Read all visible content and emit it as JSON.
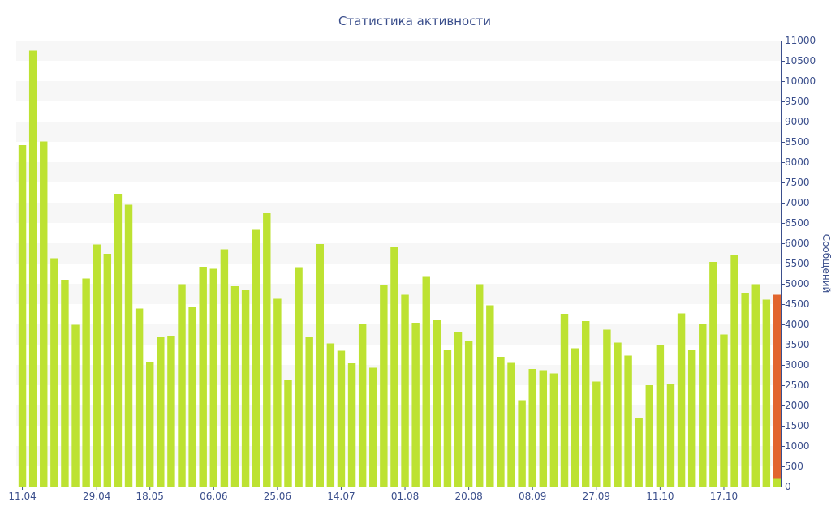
{
  "chart_data": {
    "type": "bar",
    "title": "Статистика активности",
    "xlabel": "",
    "ylabel": "Сообщений",
    "ylim": [
      0,
      11000
    ],
    "y_ticks": [
      0,
      500,
      1000,
      1500,
      2000,
      2500,
      3000,
      3500,
      4000,
      4500,
      5000,
      5500,
      6000,
      6500,
      7000,
      7500,
      8000,
      8500,
      9000,
      9500,
      10000,
      10500,
      11000
    ],
    "x_tick_labels": [
      {
        "index": 0,
        "label": "11.04"
      },
      {
        "index": 7,
        "label": "29.04"
      },
      {
        "index": 12,
        "label": "18.05"
      },
      {
        "index": 18,
        "label": "06.06"
      },
      {
        "index": 24,
        "label": "25.06"
      },
      {
        "index": 30,
        "label": "14.07"
      },
      {
        "index": 36,
        "label": "01.08"
      },
      {
        "index": 42,
        "label": "20.08"
      },
      {
        "index": 48,
        "label": "08.09"
      },
      {
        "index": 54,
        "label": "27.09"
      },
      {
        "index": 60,
        "label": "11.10"
      },
      {
        "index": 66,
        "label": "17.10"
      }
    ],
    "grid": "horizontal alternating bands",
    "colors": {
      "bar": "#bde232",
      "highlight": "#e2652d",
      "band": "#f7f7f7",
      "axis": "#3b4f8c"
    },
    "values": [
      8420,
      10750,
      8510,
      5630,
      5100,
      3990,
      5130,
      5970,
      5740,
      7220,
      6950,
      4390,
      3060,
      3690,
      3720,
      4990,
      4420,
      5420,
      5370,
      5850,
      4940,
      4840,
      6330,
      6740,
      4630,
      2640,
      5410,
      3680,
      5980,
      3530,
      3350,
      3040,
      4000,
      2930,
      4960,
      5910,
      4730,
      4040,
      5190,
      4100,
      3360,
      3820,
      3600,
      4990,
      4470,
      3200,
      3050,
      2130,
      2900,
      2870,
      2790,
      4260,
      3410,
      4080,
      2590,
      3870,
      3550,
      3230,
      1690,
      2500,
      3490,
      2530,
      4270,
      3360,
      4010,
      5540,
      3750,
      5710,
      4780,
      4990,
      4610,
      4730
    ],
    "last_bar": {
      "total": 4730,
      "highlight": 4540,
      "base": 190
    }
  }
}
